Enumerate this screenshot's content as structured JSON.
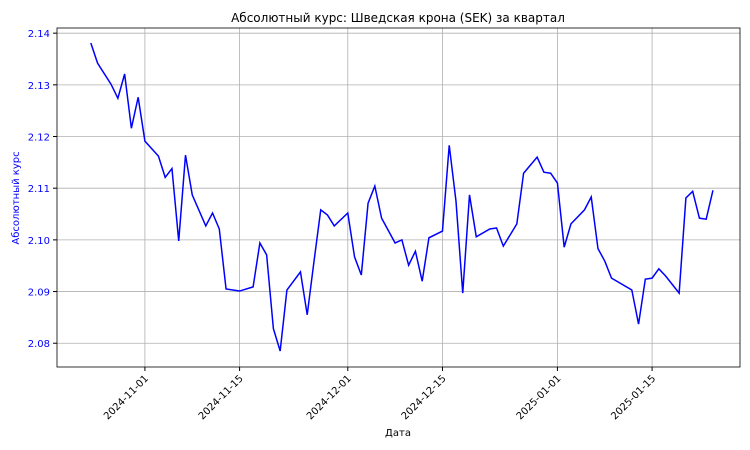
{
  "chart_data": {
    "type": "line",
    "title": "Абсолютный курс: Шведская крона (SEK) за квартал",
    "x_label": "Дата",
    "y_label": "Абсолютный курс",
    "x": [
      "2024-10-24",
      "2024-10-25",
      "2024-10-27",
      "2024-10-28",
      "2024-10-29",
      "2024-10-30",
      "2024-10-31",
      "2024-11-01",
      "2024-11-03",
      "2024-11-04",
      "2024-11-05",
      "2024-11-06",
      "2024-11-07",
      "2024-11-08",
      "2024-11-10",
      "2024-11-11",
      "2024-11-12",
      "2024-11-13",
      "2024-11-15",
      "2024-11-17",
      "2024-11-18",
      "2024-11-19",
      "2024-11-20",
      "2024-11-21",
      "2024-11-22",
      "2024-11-24",
      "2024-11-25",
      "2024-11-26",
      "2024-11-27",
      "2024-11-28",
      "2024-11-29",
      "2024-12-01",
      "2024-12-02",
      "2024-12-03",
      "2024-12-04",
      "2024-12-05",
      "2024-12-06",
      "2024-12-08",
      "2024-12-09",
      "2024-12-10",
      "2024-12-11",
      "2024-12-12",
      "2024-12-13",
      "2024-12-15",
      "2024-12-16",
      "2024-12-17",
      "2024-12-18",
      "2024-12-19",
      "2024-12-20",
      "2024-12-22",
      "2024-12-23",
      "2024-12-24",
      "2024-12-26",
      "2024-12-27",
      "2024-12-29",
      "2024-12-30",
      "2024-12-31",
      "2025-01-01",
      "2025-01-02",
      "2025-01-03",
      "2025-01-05",
      "2025-01-06",
      "2025-01-07",
      "2025-01-08",
      "2025-01-09",
      "2025-01-12",
      "2025-01-13",
      "2025-01-14",
      "2025-01-15",
      "2025-01-16",
      "2025-01-17",
      "2025-01-19",
      "2025-01-20",
      "2025-01-21",
      "2025-01-22",
      "2025-01-23",
      "2025-01-24"
    ],
    "series": [
      {
        "name": "SEK",
        "color": "#0000ff",
        "values": [
          2.1381,
          2.1342,
          2.1301,
          2.1274,
          2.1321,
          2.1216,
          2.1276,
          2.1191,
          2.1162,
          2.1121,
          2.1138,
          2.0998,
          2.1164,
          2.1087,
          2.1027,
          2.1052,
          2.1021,
          2.0905,
          2.0901,
          2.0909,
          2.0994,
          2.0971,
          2.0828,
          2.0785,
          2.0903,
          2.0938,
          2.0855,
          2.0958,
          2.1058,
          2.1048,
          2.1027,
          2.1052,
          2.0967,
          2.0932,
          2.1071,
          2.1104,
          2.1042,
          2.0994,
          2.1,
          2.0951,
          2.0978,
          2.092,
          2.1004,
          2.1017,
          2.1183,
          2.1075,
          2.0897,
          2.1087,
          2.1006,
          2.1021,
          2.1023,
          2.0988,
          2.1031,
          2.1129,
          2.116,
          2.1131,
          2.1129,
          2.111,
          2.0986,
          2.1031,
          2.1058,
          2.1083,
          2.0983,
          2.0959,
          2.0926,
          2.0903,
          2.0837,
          2.0924,
          2.0926,
          2.0944,
          2.093,
          2.0897,
          2.1081,
          2.1094,
          2.1042,
          2.104,
          2.1096
        ]
      }
    ],
    "xlim": [
      "2024-10-19",
      "2025-01-28"
    ],
    "xticks": [
      "2024-11-01",
      "2024-11-15",
      "2024-12-01",
      "2024-12-15",
      "2025-01-01",
      "2025-01-15"
    ],
    "ylim": [
      2.0754,
      2.141
    ],
    "yticks": [
      2.08,
      2.09,
      {
        "value": 2.1,
        "label": "2.10"
      },
      2.11,
      2.12,
      2.13,
      2.14
    ],
    "grid": true
  }
}
